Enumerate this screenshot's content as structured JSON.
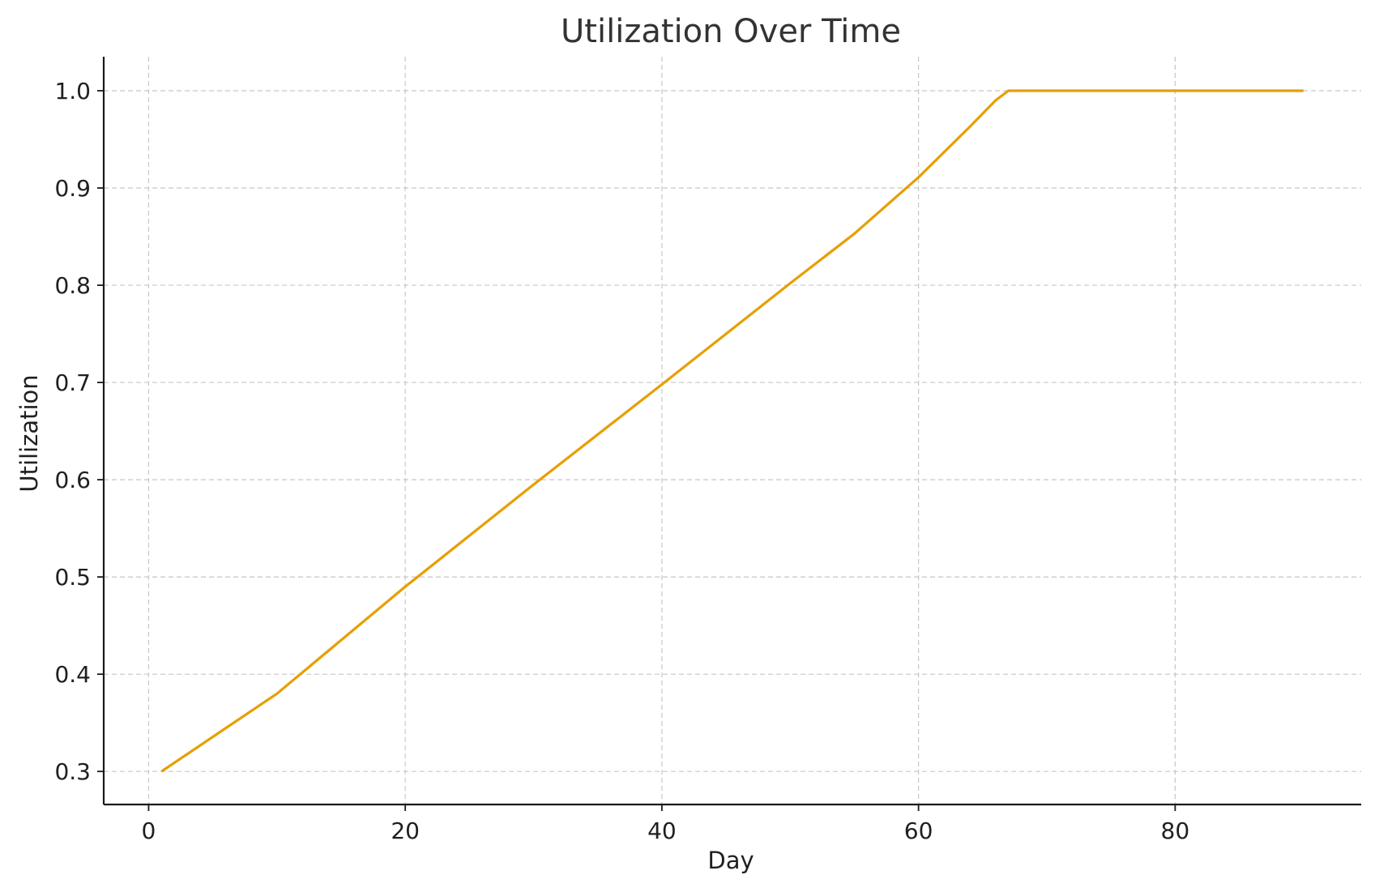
{
  "chart_data": {
    "type": "line",
    "title": "Utilization Over Time",
    "xlabel": "Day",
    "ylabel": "Utilization",
    "xlim": [
      -3.5,
      94.5
    ],
    "ylim": [
      0.266,
      1.035
    ],
    "xticks": [
      0,
      20,
      40,
      60,
      80
    ],
    "xtick_labels": [
      "0",
      "20",
      "40",
      "60",
      "80"
    ],
    "yticks": [
      0.3,
      0.4,
      0.5,
      0.6,
      0.7,
      0.8,
      0.9,
      1.0
    ],
    "ytick_labels": [
      "0.3",
      "0.4",
      "0.5",
      "0.6",
      "0.7",
      "0.8",
      "0.9",
      "1.0"
    ],
    "grid": true,
    "series": [
      {
        "color": "#E69F00",
        "x": [
          1,
          10,
          20,
          30,
          40,
          50,
          55,
          60,
          62,
          64,
          66,
          67,
          70,
          80,
          90
        ],
        "y": [
          0.3,
          0.38,
          0.49,
          0.595,
          0.698,
          0.802,
          0.853,
          0.911,
          0.937,
          0.963,
          0.99,
          1.0,
          1.0,
          1.0,
          1.0
        ]
      }
    ]
  }
}
